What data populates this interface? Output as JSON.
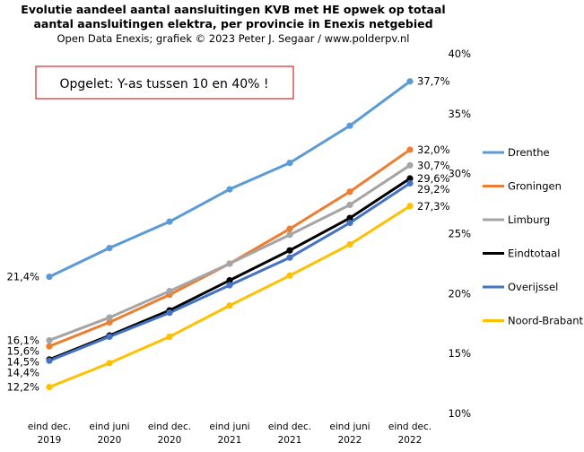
{
  "chart_data": {
    "type": "line",
    "title": "Evolutie aandeel aantal aansluitingen KVB met HE opwek op totaal",
    "subtitle": "aantal aansluitingen  elektra, per provincie in  Enexis netgebied",
    "credit": "Open Data Enexis;  grafiek © 2023 Peter J. Segaar / www.polderpv.nl",
    "note": "Opgelet: Y-as tussen 10 en 40% !",
    "categories": [
      [
        "eind dec.",
        "2019"
      ],
      [
        "eind juni",
        "2020"
      ],
      [
        "eind dec.",
        "2020"
      ],
      [
        "eind juni",
        "2021"
      ],
      [
        "eind dec.",
        "2021"
      ],
      [
        "eind juni",
        "2022"
      ],
      [
        "eind dec.",
        "2022"
      ]
    ],
    "ylim": [
      10,
      40
    ],
    "yticks": [
      10,
      15,
      20,
      25,
      30,
      35,
      40
    ],
    "ytick_labels": [
      "10%",
      "15%",
      "20%",
      "25%",
      "30%",
      "35%",
      "40%"
    ],
    "y_axis_side": "right",
    "grid": false,
    "legend_position": "right",
    "series": [
      {
        "name": "Drenthe",
        "color": "#5b9bd5",
        "values": [
          21.4,
          23.8,
          26.0,
          28.7,
          30.9,
          34.0,
          37.7
        ],
        "start_label": "21,4%",
        "end_label": "37,7%"
      },
      {
        "name": "Groningen",
        "color": "#ed7d31",
        "values": [
          15.6,
          17.6,
          19.9,
          22.5,
          25.4,
          28.5,
          32.0
        ],
        "start_label": "15,6%",
        "end_label": "32,0%"
      },
      {
        "name": "Limburg",
        "color": "#a5a5a5",
        "values": [
          16.1,
          18.0,
          20.2,
          22.5,
          24.9,
          27.4,
          30.7
        ],
        "start_label": "16,1%",
        "end_label": "30,7%"
      },
      {
        "name": "Eindtotaal",
        "color": "#000000",
        "values": [
          14.5,
          16.5,
          18.6,
          21.1,
          23.6,
          26.3,
          29.6
        ],
        "start_label": "14,5%",
        "end_label": "29,6%"
      },
      {
        "name": "Overijssel",
        "color": "#4472c4",
        "values": [
          14.4,
          16.4,
          18.4,
          20.7,
          23.0,
          25.9,
          29.2
        ],
        "start_label": "14,4%",
        "end_label": "29,2%"
      },
      {
        "name": "Noord-Brabant",
        "color": "#ffc000",
        "values": [
          12.2,
          14.2,
          16.4,
          19.0,
          21.5,
          24.1,
          27.3
        ],
        "start_label": "12,2%",
        "end_label": "27,3%"
      }
    ]
  }
}
